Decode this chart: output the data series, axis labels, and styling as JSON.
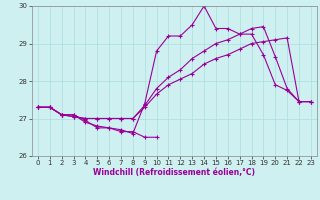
{
  "xlabel": "Windchill (Refroidissement éolien,°C)",
  "background_color": "#cff0f0",
  "grid_color": "#aadddd",
  "line_color": "#990099",
  "xlim": [
    -0.5,
    23.5
  ],
  "ylim": [
    26,
    30
  ],
  "yticks": [
    26,
    27,
    28,
    29,
    30
  ],
  "xticks": [
    0,
    1,
    2,
    3,
    4,
    5,
    6,
    7,
    8,
    9,
    10,
    11,
    12,
    13,
    14,
    15,
    16,
    17,
    18,
    19,
    20,
    21,
    22,
    23
  ],
  "series": [
    [
      27.3,
      27.3,
      27.1,
      27.1,
      26.95,
      26.75,
      26.75,
      26.65,
      26.65,
      26.5,
      26.5,
      null,
      null,
      null,
      null,
      null,
      null,
      null,
      null,
      null,
      null,
      null,
      null,
      null
    ],
    [
      27.3,
      27.3,
      27.1,
      27.1,
      26.9,
      26.8,
      26.75,
      26.7,
      26.6,
      27.4,
      28.8,
      29.2,
      29.2,
      29.5,
      30.0,
      29.4,
      29.4,
      29.25,
      29.25,
      28.7,
      27.9,
      27.75,
      27.45,
      27.45
    ],
    [
      27.3,
      27.3,
      27.1,
      27.05,
      27.0,
      27.0,
      27.0,
      27.0,
      27.0,
      27.35,
      27.8,
      28.1,
      28.3,
      28.6,
      28.8,
      29.0,
      29.1,
      29.25,
      29.4,
      29.45,
      28.65,
      27.8,
      27.45,
      27.45
    ],
    [
      27.3,
      27.3,
      27.1,
      27.05,
      27.0,
      27.0,
      27.0,
      27.0,
      27.0,
      27.3,
      27.65,
      27.9,
      28.05,
      28.2,
      28.45,
      28.6,
      28.7,
      28.85,
      29.0,
      29.05,
      29.1,
      29.15,
      27.45,
      27.45
    ]
  ],
  "tick_fontsize": 5,
  "xlabel_fontsize": 5.5,
  "xlabel_color": "#990099",
  "marker_size": 3,
  "line_width": 0.8
}
